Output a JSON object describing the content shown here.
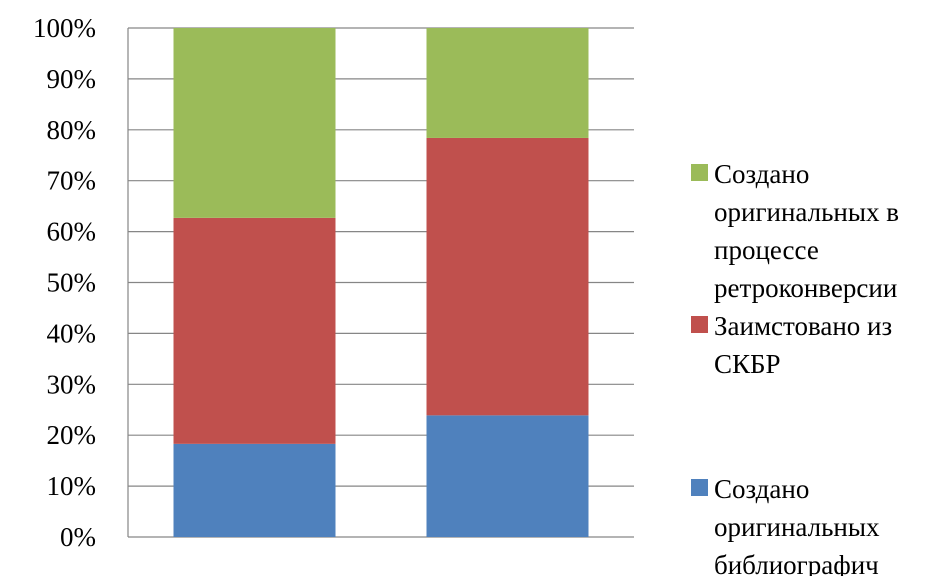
{
  "chart_data": {
    "type": "bar",
    "stacked": true,
    "percent": true,
    "categories": [
      "",
      ""
    ],
    "y_ticks": [
      "0%",
      "10%",
      "20%",
      "30%",
      "40%",
      "50%",
      "60%",
      "70%",
      "80%",
      "90%",
      "100%"
    ],
    "ylim": [
      0,
      100
    ],
    "grid": true,
    "legend_position": "right",
    "series": [
      {
        "name": "Создано оригинальных библиографич",
        "color": "#4f81bd",
        "values": [
          18.3,
          23.9
        ]
      },
      {
        "name": "Заимстовано из СКБР",
        "color": "#c0504d",
        "values": [
          44.4,
          54.5
        ]
      },
      {
        "name": "Создано оригинальных в процессе ретроконверсии",
        "color": "#9bbb59",
        "values": [
          37.3,
          21.6
        ]
      }
    ]
  }
}
